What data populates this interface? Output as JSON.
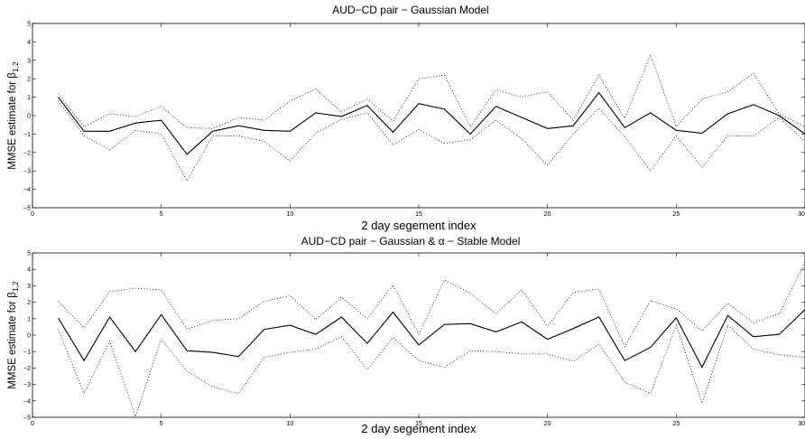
{
  "chart_data": [
    {
      "type": "line",
      "title": "AUD−CD pair − Gaussian Model",
      "xlabel": "2 day segement index",
      "ylabel_prefix": "MMSE estimate for β",
      "ylabel_subscript": "1,2",
      "xlim": [
        0,
        30
      ],
      "ylim": [
        -5,
        5
      ],
      "xticks": [
        0,
        5,
        10,
        15,
        20,
        25,
        30
      ],
      "yticks": [
        5,
        4,
        3,
        2,
        1,
        0,
        -1,
        -2,
        -3,
        -4,
        -5
      ],
      "x": [
        1,
        2,
        3,
        4,
        5,
        6,
        7,
        8,
        9,
        10,
        11,
        12,
        13,
        14,
        15,
        16,
        17,
        18,
        19,
        20,
        21,
        22,
        23,
        24,
        25,
        26,
        27,
        28,
        29,
        30
      ],
      "series": [
        {
          "role": "estimate",
          "style": "solid",
          "values": [
            1.0,
            -0.85,
            -0.85,
            -0.4,
            -0.25,
            -2.1,
            -0.85,
            -0.55,
            -0.8,
            -0.85,
            0.15,
            -0.05,
            0.55,
            -0.9,
            0.65,
            0.35,
            -1.0,
            0.5,
            -0.1,
            -0.7,
            -0.55,
            1.25,
            -0.65,
            0.15,
            -0.8,
            -0.95,
            0.1,
            0.6,
            0.0,
            -1.0
          ]
        },
        {
          "role": "upper",
          "style": "dotted",
          "values": [
            1.2,
            -0.6,
            0.1,
            -0.05,
            0.5,
            -0.65,
            -0.7,
            -0.1,
            -0.25,
            0.8,
            1.45,
            0.2,
            0.9,
            -0.3,
            2.0,
            2.2,
            -0.6,
            1.4,
            1.0,
            1.3,
            -0.25,
            2.2,
            -0.15,
            3.3,
            -0.6,
            0.9,
            1.3,
            2.3,
            0.1,
            -0.6
          ]
        },
        {
          "role": "lower",
          "style": "dotted",
          "values": [
            0.8,
            -1.1,
            -1.85,
            -0.8,
            -1.0,
            -3.55,
            -1.1,
            -1.1,
            -1.4,
            -2.45,
            -0.95,
            -0.2,
            0.15,
            -1.6,
            -0.75,
            -1.5,
            -1.3,
            -0.25,
            -1.25,
            -2.7,
            -1.0,
            0.4,
            -1.15,
            -3.0,
            -1.1,
            -2.8,
            -1.1,
            -1.1,
            -0.1,
            -1.4
          ]
        }
      ]
    },
    {
      "type": "line",
      "title": "AUD−CD pair − Gaussian & α − Stable Model",
      "xlabel": "2 day segement index",
      "ylabel_prefix": "MMSE estimate for β",
      "ylabel_subscript": "1,2",
      "xlim": [
        0,
        30
      ],
      "ylim": [
        -5,
        5
      ],
      "xticks": [
        0,
        5,
        10,
        15,
        20,
        25,
        30
      ],
      "yticks": [
        5,
        4,
        3,
        2,
        1,
        0,
        -1,
        -2,
        -3,
        -4,
        -5
      ],
      "x": [
        1,
        2,
        3,
        4,
        5,
        6,
        7,
        8,
        9,
        10,
        11,
        12,
        13,
        14,
        15,
        16,
        17,
        18,
        19,
        20,
        21,
        22,
        23,
        24,
        25,
        26,
        27,
        28,
        29,
        30
      ],
      "series": [
        {
          "role": "estimate",
          "style": "solid",
          "values": [
            1.05,
            -1.55,
            1.1,
            -1.0,
            1.25,
            -0.95,
            -1.05,
            -1.3,
            0.35,
            0.6,
            0.05,
            1.1,
            -0.5,
            1.4,
            -0.6,
            0.65,
            0.7,
            0.2,
            0.8,
            -0.25,
            0.4,
            1.1,
            -1.55,
            -0.75,
            1.05,
            -1.95,
            1.2,
            -0.1,
            0.05,
            1.55
          ]
        },
        {
          "role": "upper",
          "style": "dotted",
          "values": [
            2.05,
            0.45,
            2.65,
            2.85,
            2.75,
            0.35,
            0.9,
            1.0,
            2.05,
            2.4,
            0.95,
            2.3,
            1.0,
            3.05,
            0.05,
            3.35,
            2.55,
            1.3,
            2.75,
            0.55,
            2.6,
            2.8,
            -0.7,
            2.1,
            1.6,
            0.25,
            1.95,
            0.75,
            1.3,
            4.4
          ]
        },
        {
          "role": "lower",
          "style": "dotted",
          "values": [
            0.35,
            -3.55,
            -0.35,
            -4.95,
            -0.25,
            -2.2,
            -3.15,
            -3.55,
            -1.35,
            -1.05,
            -0.85,
            -0.1,
            -2.1,
            -0.15,
            -1.55,
            -1.95,
            -0.95,
            -1.0,
            -1.15,
            -1.15,
            -1.6,
            -0.55,
            -2.85,
            -3.55,
            0.6,
            -4.15,
            0.6,
            -0.85,
            -1.2,
            -1.35
          ]
        }
      ]
    }
  ]
}
